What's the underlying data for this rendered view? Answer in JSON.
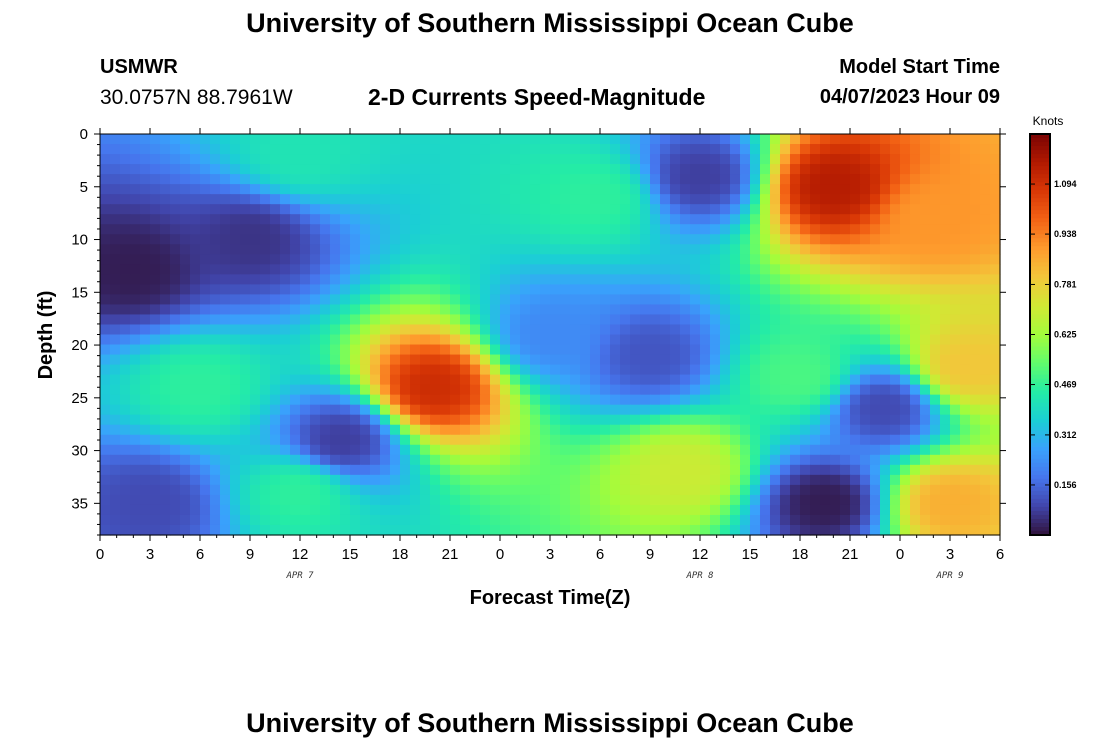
{
  "header": {
    "title": "University of Southern Mississippi Ocean Cube",
    "station_name": "USMWR",
    "station_coords": "30.0757N  88.7961W",
    "model_start_label": "Model Start Time",
    "model_start_value": "04/07/2023 Hour 09"
  },
  "footer": {
    "title": "University of Southern Mississippi Ocean Cube"
  },
  "chart_data": {
    "type": "heatmap",
    "title": "2-D Currents Speed-Magnitude",
    "xlabel": "Forecast Time(Z)",
    "ylabel": "Depth (ft)",
    "x_range_hours": [
      0,
      54
    ],
    "x_tick_labels": [
      "0",
      "3",
      "6",
      "9",
      "12",
      "15",
      "18",
      "21",
      "0",
      "3",
      "6",
      "9",
      "12",
      "15",
      "18",
      "21",
      "0",
      "3",
      "6"
    ],
    "date_labels": [
      {
        "label": "APR 7",
        "at_hour": 12
      },
      {
        "label": "APR 8",
        "at_hour": 36
      },
      {
        "label": "APR 9",
        "at_hour": 51
      }
    ],
    "ylim": [
      0,
      38
    ],
    "y_inverted": true,
    "y_tick_labels": [
      "0",
      "5",
      "10",
      "15",
      "20",
      "25",
      "30",
      "35"
    ],
    "colorbar": {
      "unit": "Knots",
      "range": [
        0,
        1.25
      ],
      "tick_labels": [
        "0.156",
        "0.312",
        "0.469",
        "0.625",
        "0.781",
        "0.938",
        "1.094"
      ],
      "colors": [
        "#30123b",
        "#4145ab",
        "#4675ed",
        "#39a2fc",
        "#1bcfd4",
        "#24eca6",
        "#61fc6c",
        "#a4fc3b",
        "#d1e834",
        "#f3c63a",
        "#fe9b2d",
        "#f36315",
        "#d93806",
        "#b11901",
        "#7a0403"
      ]
    },
    "features": [
      {
        "desc": "background",
        "time": 27,
        "depth": 19,
        "speed": 0.22
      },
      {
        "desc": "strong surface core",
        "time": 44,
        "depth": 5,
        "speed": 1.15
      },
      {
        "desc": "strong surface broad",
        "time": 50,
        "depth": 8,
        "speed": 0.9
      },
      {
        "desc": "strong right region",
        "time": 52,
        "depth": 22,
        "speed": 0.8
      },
      {
        "desc": "strong lower right",
        "time": 51,
        "depth": 35,
        "speed": 0.85
      },
      {
        "desc": "strong mid core",
        "time": 20,
        "depth": 24,
        "speed": 1.1
      },
      {
        "desc": "moderate surface",
        "time": 12,
        "depth": 2,
        "speed": 0.42
      },
      {
        "desc": "moderate mid",
        "time": 6,
        "depth": 24,
        "speed": 0.46
      },
      {
        "desc": "moderate",
        "time": 12,
        "depth": 34,
        "speed": 0.46
      },
      {
        "desc": "moderate",
        "time": 30,
        "depth": 6,
        "speed": 0.46
      },
      {
        "desc": "strong lower",
        "time": 35,
        "depth": 32,
        "speed": 0.7
      },
      {
        "desc": "moderate",
        "time": 42,
        "depth": 23,
        "speed": 0.5
      },
      {
        "desc": "weak minimum",
        "time": 2,
        "depth": 13,
        "speed": 0.02
      },
      {
        "desc": "weak",
        "time": 9,
        "depth": 10,
        "speed": 0.06
      },
      {
        "desc": "weak",
        "time": 3,
        "depth": 35,
        "speed": 0.1
      },
      {
        "desc": "weak",
        "time": 36,
        "depth": 4,
        "speed": 0.08
      },
      {
        "desc": "weak",
        "time": 43.5,
        "depth": 35,
        "speed": 0.02
      },
      {
        "desc": "weak",
        "time": 47,
        "depth": 26,
        "speed": 0.1
      },
      {
        "desc": "weak",
        "time": 33,
        "depth": 21,
        "speed": 0.12
      },
      {
        "desc": "weak",
        "time": 14.5,
        "depth": 29,
        "speed": 0.08
      }
    ]
  }
}
